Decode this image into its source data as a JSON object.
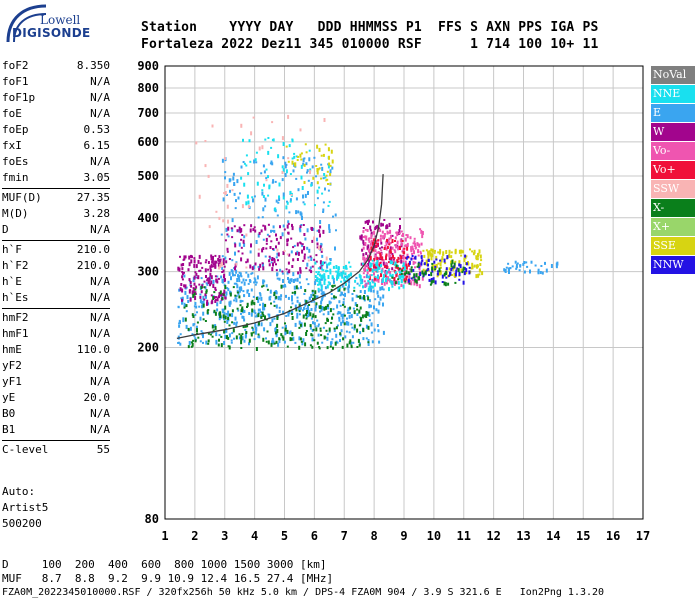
{
  "logo": {
    "line1": "Lowell",
    "line2": "DIGISONDE"
  },
  "header": {
    "row1": "Station    YYYY DAY   DDD HHMMSS P1  FFS S AXN PPS IGA PS",
    "row2": "Fortaleza 2022 Dez11 345 010000 RSF      1 714 100 10+ 11"
  },
  "params": [
    [
      {
        "k": "foF2",
        "v": "8.350"
      },
      {
        "k": "foF1",
        "v": "N/A"
      },
      {
        "k": "foF1p",
        "v": "N/A"
      },
      {
        "k": "foE",
        "v": "N/A"
      },
      {
        "k": "foEp",
        "v": "0.53"
      },
      {
        "k": "fxI",
        "v": "6.15"
      },
      {
        "k": "foEs",
        "v": "N/A"
      },
      {
        "k": "fmin",
        "v": "3.05"
      }
    ],
    [
      {
        "k": "MUF(D)",
        "v": "27.35"
      },
      {
        "k": "M(D)",
        "v": "3.28"
      },
      {
        "k": "D",
        "v": "N/A"
      }
    ],
    [
      {
        "k": "h`F",
        "v": "210.0"
      },
      {
        "k": "h`F2",
        "v": "210.0"
      },
      {
        "k": "h`E",
        "v": "N/A"
      },
      {
        "k": "h`Es",
        "v": "N/A"
      }
    ],
    [
      {
        "k": "hmF2",
        "v": "N/A"
      },
      {
        "k": "hmF1",
        "v": "N/A"
      },
      {
        "k": "hmE",
        "v": "110.0"
      },
      {
        "k": "yF2",
        "v": "N/A"
      },
      {
        "k": "yF1",
        "v": "N/A"
      },
      {
        "k": "yE",
        "v": "20.0"
      },
      {
        "k": "B0",
        "v": "N/A"
      },
      {
        "k": "B1",
        "v": "N/A"
      }
    ],
    [
      {
        "k": "C-level",
        "v": "55"
      }
    ]
  ],
  "autoscaling": {
    "line1": "Auto:",
    "line2": "Artist5",
    "line3": "500200"
  },
  "bottom": {
    "d_row": "D     100  200  400  600  800 1000 1500 3000 [km]",
    "muf_row": "MUF   8.7  8.8  9.2  9.9 10.9 12.4 16.5 27.4 [MHz]",
    "file_row": "FZA0M_2022345010000.RSF / 320fx256h 50 kHz 5.0 km / DPS-4 FZA0M 904 / 3.9 S 321.6 E   Ion2Png 1.3.20"
  },
  "legend": [
    {
      "label": "NoVal",
      "color": "#7f7f7f"
    },
    {
      "label": "NNE",
      "color": "#19e0ef"
    },
    {
      "label": "E",
      "color": "#3aa5f0"
    },
    {
      "label": "W",
      "color": "#a2058d"
    },
    {
      "label": "Vo-",
      "color": "#ef55b0"
    },
    {
      "label": "Vo+",
      "color": "#f0103a"
    },
    {
      "label": "SSW",
      "color": "#f9b4b4"
    },
    {
      "label": "X-",
      "color": "#0a7f1b"
    },
    {
      "label": "X+",
      "color": "#99d66a"
    },
    {
      "label": "SSE",
      "color": "#d7d412"
    },
    {
      "label": "NNW",
      "color": "#2312e4"
    }
  ],
  "chart_data": {
    "type": "scatter",
    "x_ticks": [
      "1",
      "2",
      "3",
      "4",
      "5",
      "6",
      "7",
      "8",
      "9",
      "10",
      "11",
      "12",
      "13",
      "14",
      "15",
      "16",
      "17"
    ],
    "y_ticks": [
      "80",
      "200",
      "300",
      "400",
      "500",
      "600",
      "700",
      "800",
      "900"
    ],
    "xlim": [
      1,
      17
    ],
    "y_scale": "log",
    "ylim": [
      80,
      900
    ],
    "grid": true,
    "legend_position": "right",
    "trace": {
      "color": "#3a3a3a",
      "points": [
        [
          1.4,
          210
        ],
        [
          2,
          214
        ],
        [
          3,
          220
        ],
        [
          4,
          228
        ],
        [
          5,
          240
        ],
        [
          6,
          258
        ],
        [
          6.5,
          268
        ],
        [
          7,
          282
        ],
        [
          7.5,
          300
        ],
        [
          7.8,
          320
        ],
        [
          8,
          345
        ],
        [
          8.15,
          380
        ],
        [
          8.25,
          430
        ],
        [
          8.3,
          505
        ]
      ]
    },
    "clusters": [
      {
        "series": "E",
        "color": "#3aa5f0",
        "x": [
          1.4,
          8.3
        ],
        "y": [
          205,
          300
        ],
        "n": 500
      },
      {
        "series": "E",
        "color": "#3aa5f0",
        "x": [
          2.8,
          6.7
        ],
        "y": [
          240,
          560
        ],
        "n": 250
      },
      {
        "series": "W",
        "color": "#a2058d",
        "x": [
          1.4,
          3.0
        ],
        "y": [
          255,
          330
        ],
        "n": 140
      },
      {
        "series": "W",
        "color": "#a2058d",
        "x": [
          3.0,
          6.3
        ],
        "y": [
          300,
          390
        ],
        "n": 140
      },
      {
        "series": "W",
        "color": "#a2058d",
        "x": [
          7.5,
          9.0
        ],
        "y": [
          300,
          400
        ],
        "n": 90
      },
      {
        "series": "X-",
        "color": "#0a7f1b",
        "x": [
          1.6,
          7.8
        ],
        "y": [
          200,
          280
        ],
        "n": 260
      },
      {
        "series": "Vo-",
        "color": "#ef55b0",
        "x": [
          7.6,
          9.6
        ],
        "y": [
          280,
          380
        ],
        "n": 220
      },
      {
        "series": "Vo+",
        "color": "#f0103a",
        "x": [
          7.8,
          9.2
        ],
        "y": [
          290,
          360
        ],
        "n": 80
      },
      {
        "series": "NNE",
        "color": "#19e0ef",
        "x": [
          6.0,
          9.0
        ],
        "y": [
          275,
          320
        ],
        "n": 150
      },
      {
        "series": "NNE",
        "color": "#19e0ef",
        "x": [
          3.5,
          6.5
        ],
        "y": [
          420,
          620
        ],
        "n": 70
      },
      {
        "series": "SSE",
        "color": "#d7d412",
        "x": [
          9.6,
          11.6
        ],
        "y": [
          295,
          340
        ],
        "n": 120
      },
      {
        "series": "SSE",
        "color": "#d7d412",
        "x": [
          5.0,
          6.6
        ],
        "y": [
          480,
          600
        ],
        "n": 40
      },
      {
        "series": "NNW",
        "color": "#2312e4",
        "x": [
          9.0,
          11.2
        ],
        "y": [
          285,
          330
        ],
        "n": 70
      },
      {
        "series": "X-",
        "color": "#0a7f1b",
        "x": [
          8.5,
          11.0
        ],
        "y": [
          280,
          320
        ],
        "n": 50
      },
      {
        "series": "E",
        "color": "#3aa5f0",
        "x": [
          12.3,
          14.2
        ],
        "y": [
          300,
          320
        ],
        "n": 40
      },
      {
        "series": "SSW",
        "color": "#f9b4b4",
        "x": [
          2.0,
          6.5
        ],
        "y": [
          300,
          700
        ],
        "n": 50
      }
    ]
  }
}
